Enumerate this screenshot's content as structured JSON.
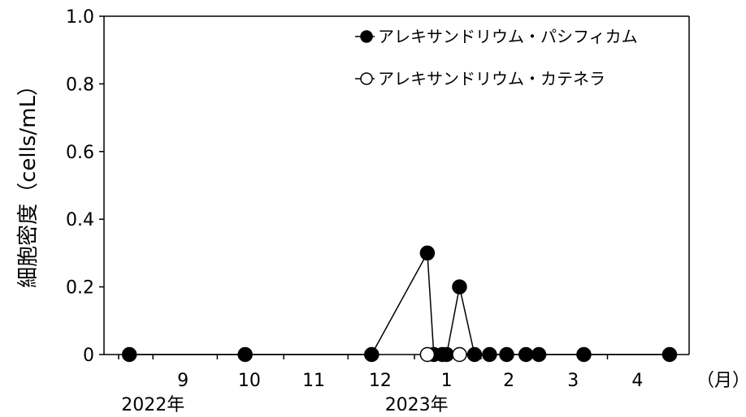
{
  "chart_data": {
    "type": "line",
    "title": "",
    "ylabel": "細胞密度（cells/mL）",
    "ylim": [
      0,
      1.0
    ],
    "yticks": [
      0,
      0.2,
      0.4,
      0.6,
      0.8,
      1.0
    ],
    "ytick_labels": [
      "0",
      "0.2",
      "0.4",
      "0.6",
      "0.8",
      "1.0"
    ],
    "xlim": [
      "2022-08-16",
      "2023-04-30"
    ],
    "month_labels": [
      {
        "label": "9",
        "date": "2022-09-15"
      },
      {
        "label": "10",
        "date": "2022-10-16"
      },
      {
        "label": "11",
        "date": "2022-11-15"
      },
      {
        "label": "12",
        "date": "2022-12-16"
      },
      {
        "label": "1",
        "date": "2023-01-16"
      },
      {
        "label": "2",
        "date": "2023-02-14"
      },
      {
        "label": "3",
        "date": "2023-03-16"
      },
      {
        "label": "4",
        "date": "2023-04-15"
      }
    ],
    "month_boundaries": [
      "2022-09-01",
      "2022-10-01",
      "2022-11-01",
      "2022-12-01",
      "2023-01-01",
      "2023-02-01",
      "2023-03-01",
      "2023-04-01"
    ],
    "x_unit_label": "（月）",
    "year_labels": [
      {
        "label": "2022年",
        "date": "2022-09-01"
      },
      {
        "label": "2023年",
        "date": "2023-01-02"
      }
    ],
    "grid": false,
    "legend_position": "top-right",
    "series": [
      {
        "name": "アレキサンドリウム・パシフィカム",
        "marker": "filled-circle",
        "color": "#000000",
        "x": [
          "2022-08-21",
          "2022-10-14",
          "2022-12-12",
          "2023-01-07",
          "2023-01-10",
          "2023-01-14",
          "2023-01-16",
          "2023-01-22",
          "2023-01-29",
          "2023-02-05",
          "2023-02-13",
          "2023-02-22",
          "2023-02-28",
          "2023-03-21",
          "2023-04-30"
        ],
        "y": [
          0,
          0,
          0,
          0.3,
          0,
          0,
          0,
          0.2,
          0,
          0,
          0,
          0,
          0,
          0,
          0
        ]
      },
      {
        "name": "アレキサンドリウム・カテネラ",
        "marker": "open-circle",
        "color": "#000000",
        "x": [
          "2023-01-07",
          "2023-01-22"
        ],
        "y": [
          0,
          0
        ]
      }
    ]
  }
}
